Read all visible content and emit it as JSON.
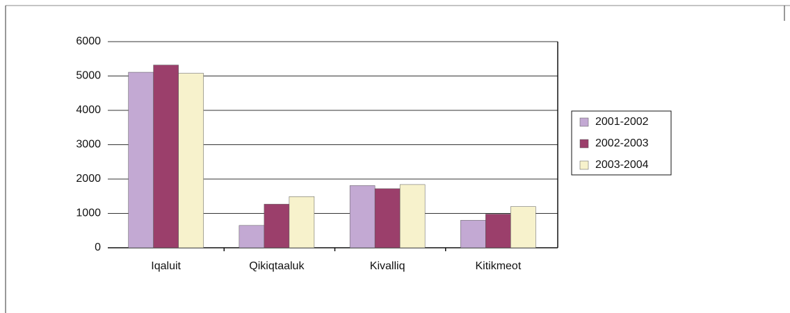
{
  "chart_data": {
    "type": "bar",
    "categories": [
      "Iqaluit",
      "Qikiqtaaluk",
      "Kivalliq",
      "Kitikmeot"
    ],
    "series": [
      {
        "name": "2001-2002",
        "color": "#c3a9d3",
        "values": [
          5110,
          650,
          1810,
          800
        ]
      },
      {
        "name": "2002-2003",
        "color": "#9b3f6b",
        "values": [
          5320,
          1270,
          1720,
          980
        ]
      },
      {
        "name": "2003-2004",
        "color": "#f7f2cc",
        "values": [
          5080,
          1490,
          1840,
          1200
        ]
      }
    ],
    "ylim": [
      0,
      6000
    ],
    "yticks": [
      0,
      1000,
      2000,
      3000,
      4000,
      5000,
      6000
    ],
    "grid": true,
    "legend": "right"
  }
}
